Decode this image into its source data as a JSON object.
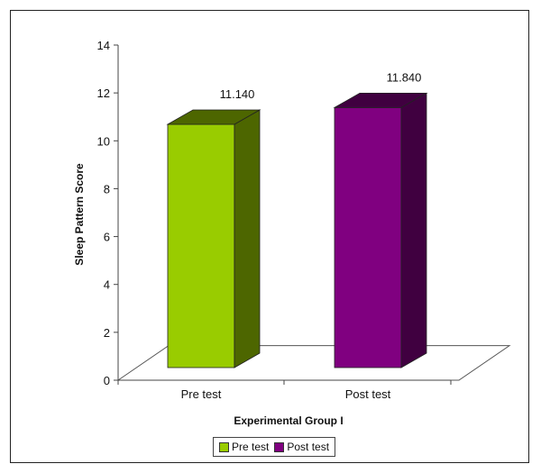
{
  "chart_data": {
    "type": "bar",
    "style": "3d-column",
    "categories": [
      "Pre test",
      "Post test"
    ],
    "values": [
      11.14,
      11.84
    ],
    "value_labels": [
      "11.140",
      "11.840"
    ],
    "colors": [
      "#99cc00",
      "#800080"
    ],
    "side_colors": [
      "#4d6600",
      "#400040"
    ],
    "xlabel": "Experimental Group I",
    "ylabel": "Sleep Pattern Score",
    "ylim": [
      0,
      14
    ],
    "yticks": [
      "0",
      "2",
      "4",
      "6",
      "8",
      "10",
      "12",
      "14"
    ],
    "grid": false,
    "legend": {
      "placement": "bottom",
      "entries": [
        {
          "label": "Pre test",
          "color": "#99cc00"
        },
        {
          "label": "Post test",
          "color": "#800080"
        }
      ]
    }
  }
}
